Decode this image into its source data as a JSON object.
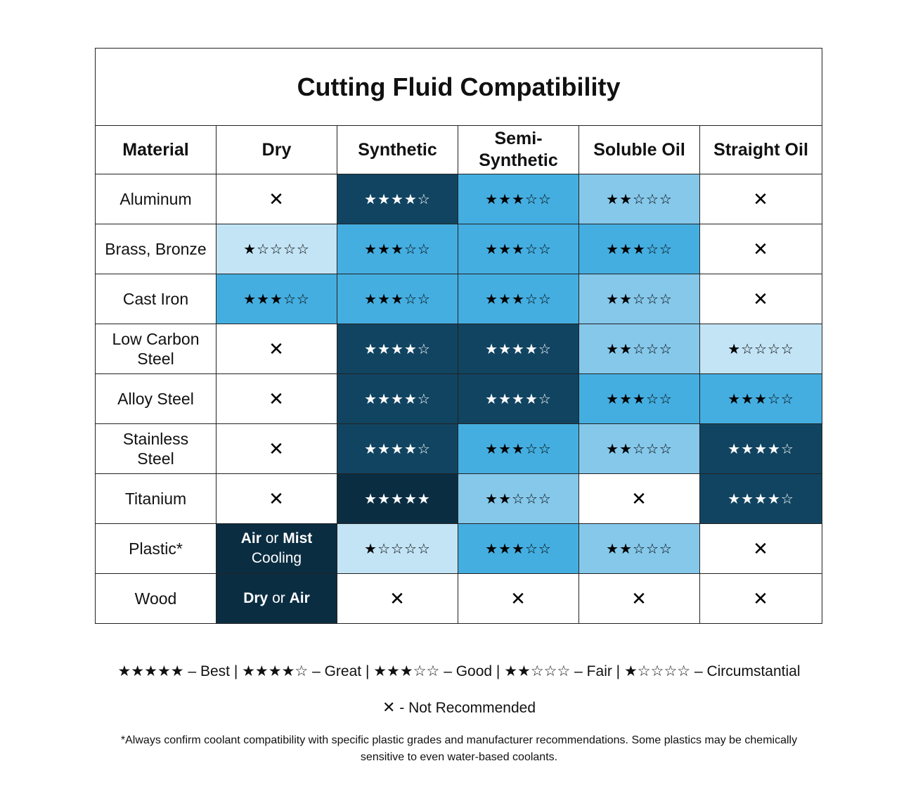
{
  "title": "Cutting Fluid Compatibility",
  "headers": [
    "Material",
    "Dry",
    "Synthetic",
    "Semi-\nSynthetic",
    "Soluble Oil",
    "Straight Oil"
  ],
  "symbols": {
    "filled_star": "★",
    "empty_star": "☆",
    "not_recommended": "✕"
  },
  "colors": {
    "rating_5": "#0b2d42",
    "rating_4": "#114461",
    "rating_3": "#45aee0",
    "rating_2": "#86c8ea",
    "rating_1": "#c3e4f5",
    "not_recommended": "#ffffff"
  },
  "chart_data": {
    "type": "table",
    "title": "Cutting Fluid Compatibility",
    "columns": [
      "Material",
      "Dry",
      "Synthetic",
      "Semi-Synthetic",
      "Soluble Oil",
      "Straight Oil"
    ],
    "scale": "stars out of 5; 0 = not recommended (✕)",
    "rows": [
      {
        "material": "Aluminum",
        "ratings": [
          0,
          4,
          3,
          2,
          0
        ]
      },
      {
        "material": "Brass, Bronze",
        "ratings": [
          1,
          3,
          3,
          3,
          0
        ]
      },
      {
        "material": "Cast Iron",
        "ratings": [
          3,
          3,
          3,
          2,
          0
        ]
      },
      {
        "material": "Low Carbon Steel",
        "ratings": [
          0,
          4,
          4,
          2,
          1
        ]
      },
      {
        "material": "Alloy Steel",
        "ratings": [
          0,
          4,
          4,
          3,
          3
        ]
      },
      {
        "material": "Stainless Steel",
        "ratings": [
          0,
          4,
          3,
          2,
          4
        ]
      },
      {
        "material": "Titanium",
        "ratings": [
          0,
          5,
          2,
          0,
          4
        ]
      },
      {
        "material": "Plastic*",
        "ratings": [
          null,
          1,
          3,
          2,
          0
        ],
        "notes": [
          [
            {
              "t": "Air",
              "b": true
            },
            {
              "t": " or ",
              "b": false
            },
            {
              "t": "Mist",
              "b": true
            },
            {
              "t": "\nCooling",
              "b": false
            }
          ],
          null,
          null,
          null,
          null
        ]
      },
      {
        "material": "Wood",
        "ratings": [
          null,
          0,
          0,
          0,
          0
        ],
        "notes": [
          [
            {
              "t": "Dry",
              "b": true
            },
            {
              "t": " or ",
              "b": false
            },
            {
              "t": "Air",
              "b": true
            }
          ],
          null,
          null,
          null,
          null
        ]
      }
    ]
  },
  "legend": {
    "ratings": "★★★★★ – Best | ★★★★☆ – Great | ★★★☆☆ – Good | ★★☆☆☆ – Fair | ★☆☆☆☆ – Circumstantial",
    "x_symbol": "✕",
    "x_label": " - Not Recommended"
  },
  "footnote": "*Always confirm coolant compatibility with specific plastic grades and manufacturer recommendations. Some plastics may be chemically sensitive to even water-based coolants."
}
